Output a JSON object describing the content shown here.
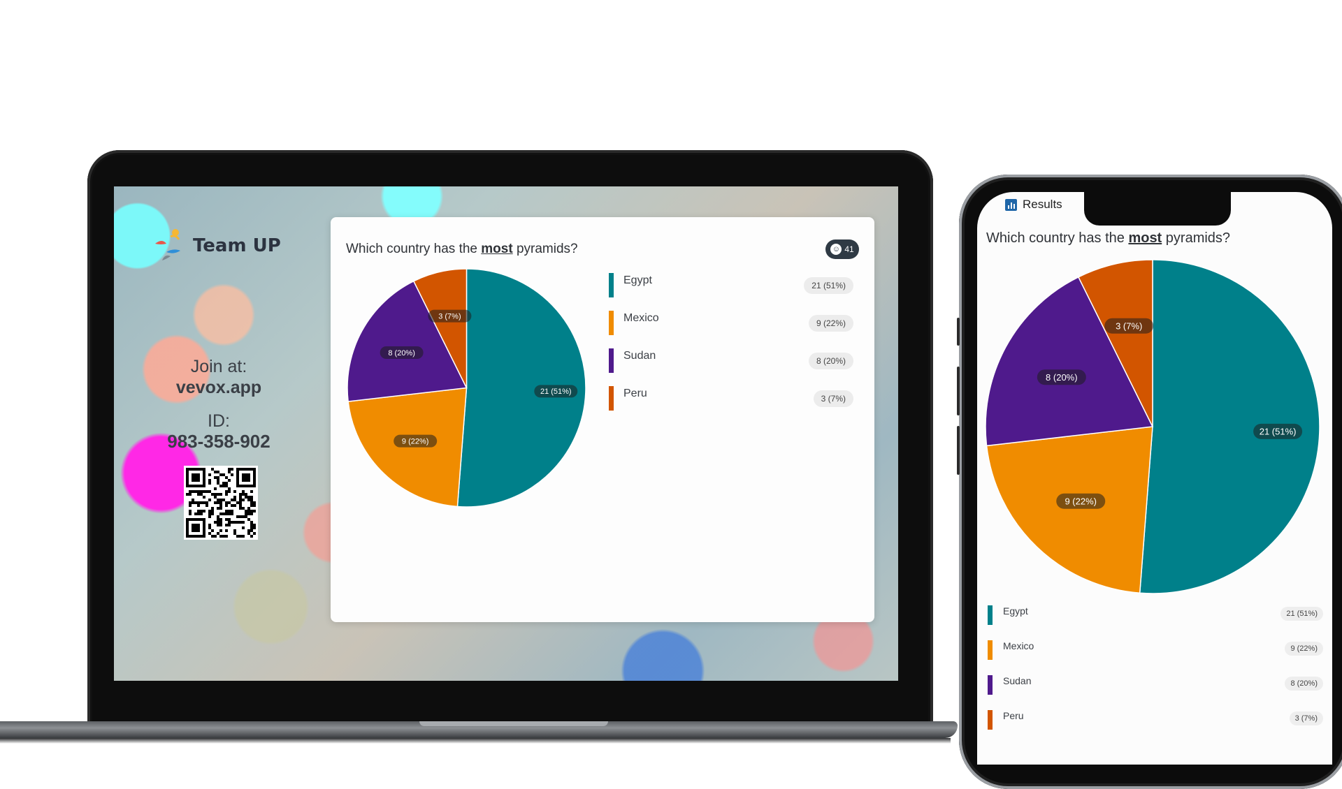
{
  "brand": {
    "name": "Team UP"
  },
  "join": {
    "label": "Join at:",
    "url": "vevox.app",
    "id_label": "ID:",
    "id_value": "983-358-902"
  },
  "poll": {
    "question_prefix": "Which country has the",
    "question_emphasis": "most",
    "question_suffix": "pyramids?",
    "votes": "41"
  },
  "phone": {
    "tab_label": "Results"
  },
  "chart_data": {
    "type": "pie",
    "categories": [
      "Egypt",
      "Mexico",
      "Sudan",
      "Peru"
    ],
    "values": [
      21,
      9,
      8,
      3
    ],
    "labels": [
      "21 (51%)",
      "9 (22%)",
      "8 (20%)",
      "3 (7%)"
    ],
    "colors": [
      "#00808a",
      "#f08c00",
      "#4f1a8c",
      "#d25500"
    ],
    "legend": "right"
  }
}
